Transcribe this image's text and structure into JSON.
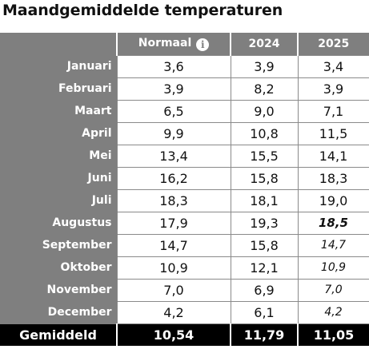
{
  "title": "Maandgemiddelde temperaturen",
  "columns": {
    "normal": "Normaal",
    "year1": "2024",
    "year2": "2025"
  },
  "info_icon_glyph": "i",
  "rows": [
    {
      "month": "Januari",
      "normal": "3,6",
      "year1": "3,9",
      "year2": "3,4",
      "year2_style": "actual"
    },
    {
      "month": "Februari",
      "normal": "3,9",
      "year1": "8,2",
      "year2": "3,9",
      "year2_style": "actual"
    },
    {
      "month": "Maart",
      "normal": "6,5",
      "year1": "9,0",
      "year2": "7,1",
      "year2_style": "actual"
    },
    {
      "month": "April",
      "normal": "9,9",
      "year1": "10,8",
      "year2": "11,5",
      "year2_style": "actual"
    },
    {
      "month": "Mei",
      "normal": "13,4",
      "year1": "15,5",
      "year2": "14,1",
      "year2_style": "actual"
    },
    {
      "month": "Juni",
      "normal": "16,2",
      "year1": "15,8",
      "year2": "18,3",
      "year2_style": "actual"
    },
    {
      "month": "Juli",
      "normal": "18,3",
      "year1": "18,1",
      "year2": "19,0",
      "year2_style": "actual"
    },
    {
      "month": "Augustus",
      "normal": "17,9",
      "year1": "19,3",
      "year2": "18,5",
      "year2_style": "current"
    },
    {
      "month": "September",
      "normal": "14,7",
      "year1": "15,8",
      "year2": "14,7",
      "year2_style": "forecast"
    },
    {
      "month": "Oktober",
      "normal": "10,9",
      "year1": "12,1",
      "year2": "10,9",
      "year2_style": "forecast"
    },
    {
      "month": "November",
      "normal": "7,0",
      "year1": "6,9",
      "year2": "7,0",
      "year2_style": "forecast"
    },
    {
      "month": "December",
      "normal": "4,2",
      "year1": "6,1",
      "year2": "4,2",
      "year2_style": "forecast"
    }
  ],
  "footer": {
    "label": "Gemiddeld",
    "normal": "10,54",
    "year1": "11,79",
    "year2": "11,05"
  },
  "colors": {
    "header_bg": "#7f7f7f",
    "footer_bg": "#000000"
  }
}
